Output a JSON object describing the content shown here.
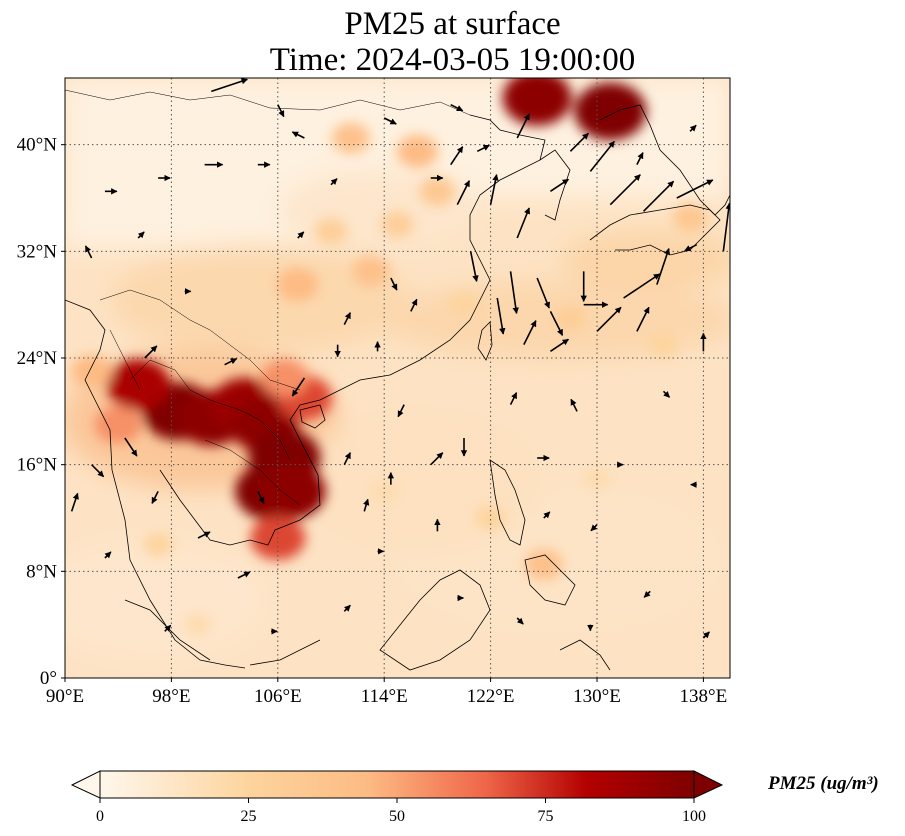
{
  "title": {
    "line1": "PM25 at surface",
    "line2": "Time: 2024-03-05 19:00:00"
  },
  "map": {
    "projection": "PlateCarree",
    "lon_range": [
      90,
      140
    ],
    "lat_range": [
      0,
      45
    ],
    "gridlines": true,
    "gridline_style": "dotted",
    "lon_ticks": [
      {
        "value": 90,
        "label": "90°E"
      },
      {
        "value": 98,
        "label": "98°E"
      },
      {
        "value": 106,
        "label": "106°E"
      },
      {
        "value": 114,
        "label": "114°E"
      },
      {
        "value": 122,
        "label": "122°E"
      },
      {
        "value": 130,
        "label": "130°E"
      },
      {
        "value": 138,
        "label": "138°E"
      }
    ],
    "lat_ticks": [
      {
        "value": 0,
        "label": "0°"
      },
      {
        "value": 8,
        "label": "8°N"
      },
      {
        "value": 16,
        "label": "16°N"
      },
      {
        "value": 24,
        "label": "24°N"
      },
      {
        "value": 32,
        "label": "32°N"
      },
      {
        "value": 40,
        "label": "40°N"
      }
    ],
    "hotspots": [
      {
        "lon": 98.5,
        "lat": 20.0,
        "value": 100
      },
      {
        "lon": 95.5,
        "lat": 22.0,
        "value": 85
      },
      {
        "lon": 101.0,
        "lat": 19.5,
        "value": 95
      },
      {
        "lon": 103.5,
        "lat": 20.5,
        "value": 90
      },
      {
        "lon": 105.0,
        "lat": 19.0,
        "value": 95
      },
      {
        "lon": 106.5,
        "lat": 16.5,
        "value": 100
      },
      {
        "lon": 105.5,
        "lat": 14.0,
        "value": 100
      },
      {
        "lon": 107.0,
        "lat": 14.0,
        "value": 95
      },
      {
        "lon": 106.0,
        "lat": 10.5,
        "value": 70
      },
      {
        "lon": 108.0,
        "lat": 21.0,
        "value": 70
      },
      {
        "lon": 106.5,
        "lat": 22.5,
        "value": 55
      },
      {
        "lon": 94.0,
        "lat": 19.0,
        "value": 55
      },
      {
        "lon": 92.0,
        "lat": 23.0,
        "value": 45
      },
      {
        "lon": 107.5,
        "lat": 29.5,
        "value": 45
      },
      {
        "lon": 113.0,
        "lat": 30.5,
        "value": 40
      },
      {
        "lon": 116.5,
        "lat": 39.5,
        "value": 45
      },
      {
        "lon": 118.0,
        "lat": 36.5,
        "value": 35
      },
      {
        "lon": 115.0,
        "lat": 34.0,
        "value": 30
      },
      {
        "lon": 110.0,
        "lat": 33.5,
        "value": 30
      },
      {
        "lon": 111.5,
        "lat": 40.5,
        "value": 40
      },
      {
        "lon": 125.5,
        "lat": 43.5,
        "value": 95
      },
      {
        "lon": 131.0,
        "lat": 42.5,
        "value": 100
      },
      {
        "lon": 120.0,
        "lat": 28.0,
        "value": 25
      },
      {
        "lon": 128.0,
        "lat": 27.0,
        "value": 30
      },
      {
        "lon": 135.0,
        "lat": 25.0,
        "value": 25
      },
      {
        "lon": 126.0,
        "lat": 8.5,
        "value": 40
      },
      {
        "lon": 122.0,
        "lat": 12.0,
        "value": 25
      },
      {
        "lon": 114.0,
        "lat": 14.0,
        "value": 20
      },
      {
        "lon": 130.0,
        "lat": 15.0,
        "value": 20
      },
      {
        "lon": 97.0,
        "lat": 10.0,
        "value": 25
      },
      {
        "lon": 100.0,
        "lat": 4.0,
        "value": 20
      },
      {
        "lon": 137.0,
        "lat": 34.5,
        "value": 35
      }
    ],
    "wind_vectors": [
      {
        "lon": 101.0,
        "lat": 44.0,
        "u": 3,
        "v": 1
      },
      {
        "lon": 106.0,
        "lat": 43.0,
        "u": 0.5,
        "v": -1
      },
      {
        "lon": 114.0,
        "lat": 42.0,
        "u": 1,
        "v": -0.5
      },
      {
        "lon": 119.0,
        "lat": 43.0,
        "u": 1,
        "v": -0.5
      },
      {
        "lon": 124.0,
        "lat": 40.5,
        "u": 1,
        "v": 2
      },
      {
        "lon": 128.0,
        "lat": 39.5,
        "u": 1.5,
        "v": 1.5
      },
      {
        "lon": 129.5,
        "lat": 38.0,
        "u": 2,
        "v": 2.5
      },
      {
        "lon": 131.0,
        "lat": 35.5,
        "u": 2.5,
        "v": 2.5
      },
      {
        "lon": 133.5,
        "lat": 35.0,
        "u": 2.5,
        "v": 2.5
      },
      {
        "lon": 136.0,
        "lat": 36.0,
        "u": 3,
        "v": 1.5
      },
      {
        "lon": 139.5,
        "lat": 32.0,
        "u": 0.5,
        "v": 4
      },
      {
        "lon": 137.5,
        "lat": 32.5,
        "u": -1,
        "v": -0.5
      },
      {
        "lon": 134.5,
        "lat": 29.5,
        "u": 1,
        "v": 3
      },
      {
        "lon": 132.0,
        "lat": 28.5,
        "u": 3,
        "v": 2
      },
      {
        "lon": 129.0,
        "lat": 28.0,
        "u": 2,
        "v": 0
      },
      {
        "lon": 130.0,
        "lat": 26.0,
        "u": 2,
        "v": 2
      },
      {
        "lon": 133.0,
        "lat": 26.0,
        "u": 1,
        "v": 2
      },
      {
        "lon": 126.5,
        "lat": 24.5,
        "u": 1.5,
        "v": 1
      },
      {
        "lon": 124.5,
        "lat": 25.0,
        "u": 1,
        "v": 2
      },
      {
        "lon": 122.5,
        "lat": 28.5,
        "u": 0.5,
        "v": -3
      },
      {
        "lon": 123.5,
        "lat": 30.5,
        "u": 0.5,
        "v": -3.5
      },
      {
        "lon": 125.5,
        "lat": 30.0,
        "u": 1,
        "v": -2.5
      },
      {
        "lon": 126.5,
        "lat": 27.5,
        "u": 1,
        "v": -2
      },
      {
        "lon": 129.0,
        "lat": 30.5,
        "u": 0,
        "v": -2.5
      },
      {
        "lon": 120.5,
        "lat": 32.0,
        "u": 0.5,
        "v": -2.5
      },
      {
        "lon": 122.0,
        "lat": 35.5,
        "u": 0.5,
        "v": 2.5
      },
      {
        "lon": 124.0,
        "lat": 33.0,
        "u": 1,
        "v": 2.5
      },
      {
        "lon": 126.5,
        "lat": 36.5,
        "u": 1.5,
        "v": 1
      },
      {
        "lon": 119.5,
        "lat": 35.5,
        "u": 1,
        "v": 2
      },
      {
        "lon": 117.5,
        "lat": 37.5,
        "u": 1,
        "v": 0
      },
      {
        "lon": 119.0,
        "lat": 38.5,
        "u": 1,
        "v": 1.5
      },
      {
        "lon": 121.0,
        "lat": 39.5,
        "u": 1,
        "v": 0.5
      },
      {
        "lon": 110.0,
        "lat": 37.0,
        "u": 0.5,
        "v": 0.5
      },
      {
        "lon": 108.0,
        "lat": 40.5,
        "u": -1,
        "v": 0.5
      },
      {
        "lon": 104.5,
        "lat": 38.5,
        "u": 1,
        "v": 0
      },
      {
        "lon": 100.5,
        "lat": 38.5,
        "u": 1.5,
        "v": 0
      },
      {
        "lon": 97.0,
        "lat": 37.5,
        "u": 1,
        "v": 0
      },
      {
        "lon": 93.0,
        "lat": 36.5,
        "u": 1,
        "v": 0
      },
      {
        "lon": 95.5,
        "lat": 33.0,
        "u": 0.5,
        "v": 0.5
      },
      {
        "lon": 92.0,
        "lat": 31.5,
        "u": -0.5,
        "v": 1
      },
      {
        "lon": 99.0,
        "lat": 29.0,
        "u": 0.5,
        "v": 0
      },
      {
        "lon": 107.5,
        "lat": 33.0,
        "u": 0.5,
        "v": 0.5
      },
      {
        "lon": 114.5,
        "lat": 30.0,
        "u": 0.5,
        "v": -1
      },
      {
        "lon": 116.0,
        "lat": 27.5,
        "u": 0.5,
        "v": 1
      },
      {
        "lon": 111.0,
        "lat": 26.5,
        "u": 0.5,
        "v": 1
      },
      {
        "lon": 113.5,
        "lat": 24.5,
        "u": 0,
        "v": 0.8
      },
      {
        "lon": 110.5,
        "lat": 25.0,
        "u": 0,
        "v": -1
      },
      {
        "lon": 108.0,
        "lat": 22.5,
        "u": -1,
        "v": -1.5
      },
      {
        "lon": 102.0,
        "lat": 23.5,
        "u": 1,
        "v": 0.5
      },
      {
        "lon": 96.0,
        "lat": 24.0,
        "u": 1,
        "v": 1
      },
      {
        "lon": 94.5,
        "lat": 18.0,
        "u": 1,
        "v": -1.5
      },
      {
        "lon": 92.0,
        "lat": 16.0,
        "u": 1,
        "v": -1
      },
      {
        "lon": 90.5,
        "lat": 12.5,
        "u": 0.5,
        "v": 1.5
      },
      {
        "lon": 93.0,
        "lat": 9.0,
        "u": 0.5,
        "v": 0.5
      },
      {
        "lon": 97.0,
        "lat": 14.0,
        "u": -0.5,
        "v": -1
      },
      {
        "lon": 100.0,
        "lat": 10.5,
        "u": 1,
        "v": 0.5
      },
      {
        "lon": 103.0,
        "lat": 7.5,
        "u": 1,
        "v": 0.5
      },
      {
        "lon": 104.5,
        "lat": 14.0,
        "u": 0.5,
        "v": -1
      },
      {
        "lon": 111.0,
        "lat": 16.0,
        "u": 0.5,
        "v": 1
      },
      {
        "lon": 112.5,
        "lat": 12.5,
        "u": 0.3,
        "v": 1
      },
      {
        "lon": 114.5,
        "lat": 14.5,
        "u": 0,
        "v": 1
      },
      {
        "lon": 115.5,
        "lat": 20.5,
        "u": -0.5,
        "v": -1
      },
      {
        "lon": 117.5,
        "lat": 16.0,
        "u": 1,
        "v": 1
      },
      {
        "lon": 120.0,
        "lat": 18.0,
        "u": 0,
        "v": -1.5
      },
      {
        "lon": 123.5,
        "lat": 20.5,
        "u": 0.5,
        "v": 1
      },
      {
        "lon": 125.5,
        "lat": 16.5,
        "u": 1,
        "v": 0
      },
      {
        "lon": 128.5,
        "lat": 20.0,
        "u": -0.5,
        "v": 1
      },
      {
        "lon": 131.5,
        "lat": 16.0,
        "u": 0.5,
        "v": 0
      },
      {
        "lon": 135.0,
        "lat": 21.5,
        "u": 0.5,
        "v": -0.5
      },
      {
        "lon": 138.0,
        "lat": 24.5,
        "u": 0,
        "v": 1.5
      },
      {
        "lon": 137.5,
        "lat": 14.5,
        "u": -0.5,
        "v": 0
      },
      {
        "lon": 130.0,
        "lat": 11.5,
        "u": -0.5,
        "v": -0.5
      },
      {
        "lon": 126.0,
        "lat": 12.0,
        "u": 0.5,
        "v": 0.5
      },
      {
        "lon": 118.0,
        "lat": 11.0,
        "u": 0,
        "v": 1
      },
      {
        "lon": 113.5,
        "lat": 9.5,
        "u": 0.5,
        "v": 0
      },
      {
        "lon": 111.0,
        "lat": 5.0,
        "u": 0.5,
        "v": 0.5
      },
      {
        "lon": 105.5,
        "lat": 3.5,
        "u": 0.5,
        "v": 0
      },
      {
        "lon": 97.5,
        "lat": 3.5,
        "u": 0.5,
        "v": 0.5
      },
      {
        "lon": 119.5,
        "lat": 6.0,
        "u": 0.5,
        "v": 0
      },
      {
        "lon": 124.0,
        "lat": 4.5,
        "u": 0.5,
        "v": -0.5
      },
      {
        "lon": 129.5,
        "lat": 4.0,
        "u": 0,
        "v": -0.5
      },
      {
        "lon": 134.0,
        "lat": 6.5,
        "u": -0.5,
        "v": -0.5
      },
      {
        "lon": 138.0,
        "lat": 3.0,
        "u": 0.5,
        "v": 0.5
      },
      {
        "lon": 133.0,
        "lat": 38.5,
        "u": 0.5,
        "v": 1
      },
      {
        "lon": 137.0,
        "lat": 41.0,
        "u": 0.5,
        "v": 0.5
      }
    ]
  },
  "colorbar": {
    "label": "PM25 (ug/m³)",
    "cmap": "OrRd",
    "min": 0,
    "max": 100,
    "extend": "both",
    "ticks": [
      {
        "value": 0,
        "label": "0"
      },
      {
        "value": 25,
        "label": "25"
      },
      {
        "value": 50,
        "label": "50"
      },
      {
        "value": 75,
        "label": "75"
      },
      {
        "value": 100,
        "label": "100"
      }
    ],
    "colors": [
      "#fff7ec",
      "#fdd49e",
      "#fdbb84",
      "#ef6548",
      "#b30000",
      "#7f0000"
    ]
  }
}
